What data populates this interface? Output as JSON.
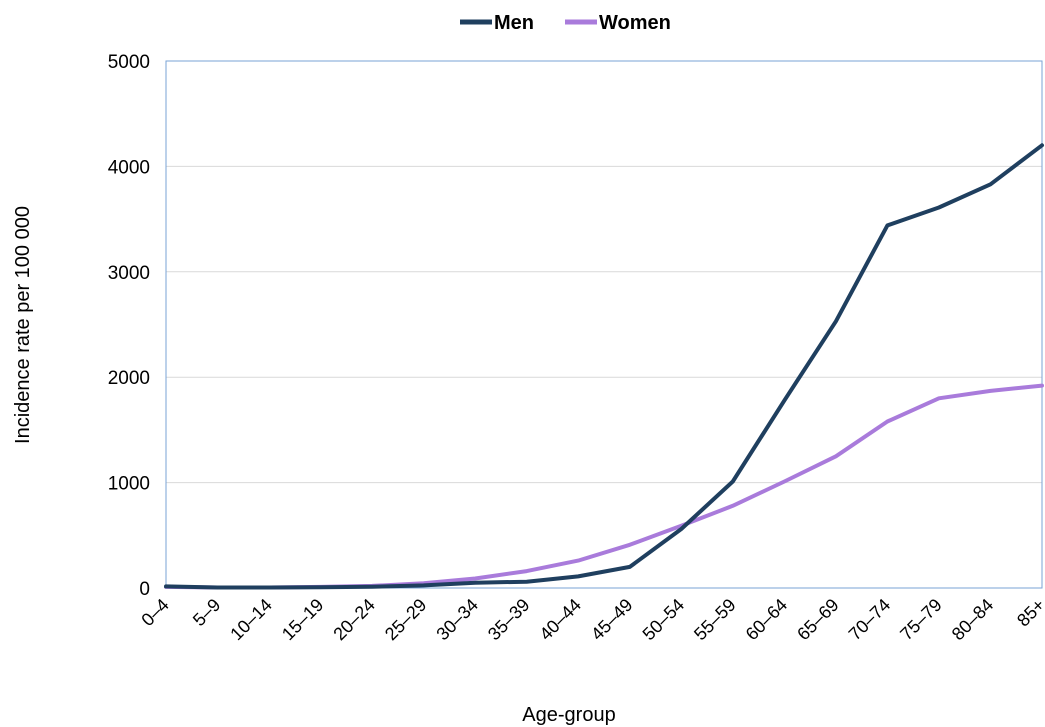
{
  "chart_data": {
    "type": "line",
    "title": "",
    "xlabel": "Age-group",
    "ylabel": "Incidence  rate per 100 000",
    "ylim": [
      0,
      5000
    ],
    "yticks": [
      "0",
      "1000",
      "2000",
      "3000",
      "4000",
      "5000"
    ],
    "grid": "horizontal",
    "legend_position": "top-center",
    "categories": [
      "0–4",
      "5–9",
      "10–14",
      "15–19",
      "20–24",
      "25–29",
      "30–34",
      "35–39",
      "40–44",
      "45–49",
      "50–54",
      "55–59",
      "60–64",
      "65–69",
      "70–74",
      "75–79",
      "80–84",
      "85+"
    ],
    "series": [
      {
        "name": "Men",
        "color": "#1f3f5f",
        "values": [
          15,
          5,
          5,
          8,
          12,
          25,
          50,
          60,
          110,
          200,
          560,
          1010,
          1780,
          2530,
          3440,
          3610,
          3830,
          4200
        ]
      },
      {
        "name": "Women",
        "color": "#a97bdb",
        "values": [
          10,
          5,
          5,
          10,
          20,
          45,
          90,
          160,
          260,
          410,
          590,
          780,
          1010,
          1250,
          1580,
          1800,
          1870,
          1920
        ]
      }
    ]
  }
}
